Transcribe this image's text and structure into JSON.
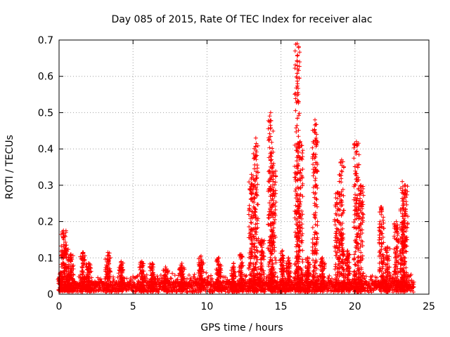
{
  "chart_data": {
    "type": "scatter",
    "title": "Day 085 of 2015, Rate Of TEC Index for receiver alac",
    "xlabel": "GPS time / hours",
    "ylabel": "ROTI / TECUs",
    "xlim": [
      0,
      25
    ],
    "ylim": [
      0,
      0.7
    ],
    "xticks": [
      0,
      5,
      10,
      15,
      20,
      25
    ],
    "yticks": [
      0,
      0.1,
      0.2,
      0.3,
      0.4,
      0.5,
      0.6,
      0.7
    ],
    "xtick_labels": [
      "0",
      "5",
      "10",
      "15",
      "20",
      "25"
    ],
    "ytick_labels": [
      "0",
      "0.1",
      "0.2",
      "0.3",
      "0.4",
      "0.5",
      "0.6",
      "0.7"
    ],
    "grid": true,
    "marker": "+",
    "color": "#ff0000",
    "data_x_range": [
      0,
      24
    ],
    "background_level": 0.03,
    "bursts": [
      {
        "t": 0.1,
        "peak": 0.06
      },
      {
        "t": 0.3,
        "peak": 0.175
      },
      {
        "t": 0.5,
        "peak": 0.135
      },
      {
        "t": 0.8,
        "peak": 0.11
      },
      {
        "t": 1.6,
        "peak": 0.115
      },
      {
        "t": 2.0,
        "peak": 0.085
      },
      {
        "t": 3.3,
        "peak": 0.115
      },
      {
        "t": 4.2,
        "peak": 0.09
      },
      {
        "t": 5.6,
        "peak": 0.09
      },
      {
        "t": 6.3,
        "peak": 0.085
      },
      {
        "t": 7.2,
        "peak": 0.075
      },
      {
        "t": 8.3,
        "peak": 0.085
      },
      {
        "t": 9.6,
        "peak": 0.105
      },
      {
        "t": 10.8,
        "peak": 0.1
      },
      {
        "t": 11.8,
        "peak": 0.085
      },
      {
        "t": 12.3,
        "peak": 0.11
      },
      {
        "t": 13.0,
        "peak": 0.33
      },
      {
        "t": 13.3,
        "peak": 0.43
      },
      {
        "t": 13.7,
        "peak": 0.15
      },
      {
        "t": 14.3,
        "peak": 0.5
      },
      {
        "t": 14.5,
        "peak": 0.36
      },
      {
        "t": 15.1,
        "peak": 0.12
      },
      {
        "t": 15.5,
        "peak": 0.1
      },
      {
        "t": 16.1,
        "peak": 0.69
      },
      {
        "t": 16.3,
        "peak": 0.42
      },
      {
        "t": 16.8,
        "peak": 0.1
      },
      {
        "t": 17.3,
        "peak": 0.48
      },
      {
        "t": 17.8,
        "peak": 0.1
      },
      {
        "t": 18.8,
        "peak": 0.28
      },
      {
        "t": 19.1,
        "peak": 0.37
      },
      {
        "t": 19.5,
        "peak": 0.12
      },
      {
        "t": 20.1,
        "peak": 0.42
      },
      {
        "t": 20.4,
        "peak": 0.3
      },
      {
        "t": 21.8,
        "peak": 0.24
      },
      {
        "t": 22.2,
        "peak": 0.13
      },
      {
        "t": 22.8,
        "peak": 0.2
      },
      {
        "t": 23.2,
        "peak": 0.31
      },
      {
        "t": 23.4,
        "peak": 0.3
      }
    ]
  }
}
